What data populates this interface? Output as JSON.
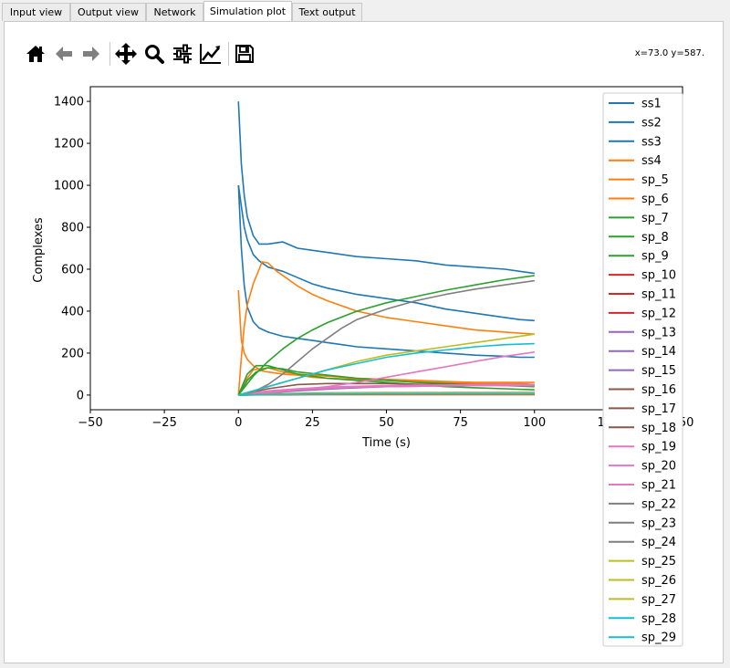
{
  "tabs": [
    {
      "label": "Input view",
      "active": false
    },
    {
      "label": "Output view",
      "active": false
    },
    {
      "label": "Network",
      "active": false
    },
    {
      "label": "Simulation plot",
      "active": true
    },
    {
      "label": "Text output",
      "active": false
    }
  ],
  "toolbar": {
    "buttons": [
      {
        "name": "home",
        "icon": "home-icon"
      },
      {
        "name": "back",
        "icon": "arrow-left-icon"
      },
      {
        "name": "forward",
        "icon": "arrow-right-icon"
      },
      {
        "name": "pan",
        "icon": "move-icon"
      },
      {
        "name": "zoom",
        "icon": "magnifier-icon"
      },
      {
        "name": "configure-subplots",
        "icon": "sliders-icon"
      },
      {
        "name": "edit-axis",
        "icon": "line-chart-icon"
      },
      {
        "name": "save",
        "icon": "floppy-disk-icon"
      }
    ],
    "coords_text": "x=73.0 y=587."
  },
  "chart_data": {
    "type": "line",
    "xlabel": "Time (s)",
    "ylabel": "Complexes",
    "xlim": [
      -50,
      150
    ],
    "ylim": [
      -70,
      1470
    ],
    "xticks": [
      -50,
      -25,
      0,
      25,
      50,
      75,
      100,
      125,
      150
    ],
    "xtick_labels": [
      "−50",
      "−25",
      "0",
      "25",
      "50",
      "75",
      "100",
      "125",
      "150"
    ],
    "yticks": [
      0,
      200,
      400,
      600,
      800,
      1000,
      1200,
      1400
    ],
    "legend_position": "right, extending below axes",
    "series": [
      {
        "name": "ss1",
        "color": "#1f77b4",
        "x": [
          0,
          1,
          2,
          3,
          5,
          7,
          10,
          15,
          20,
          25,
          30,
          40,
          50,
          60,
          70,
          80,
          90,
          95,
          100
        ],
        "y": [
          1400,
          1100,
          950,
          850,
          760,
          720,
          720,
          730,
          700,
          690,
          680,
          660,
          650,
          640,
          620,
          610,
          600,
          590,
          580
        ]
      },
      {
        "name": "ss2",
        "color": "#1f77b4",
        "x": [
          0,
          1,
          2,
          3,
          5,
          7,
          10,
          15,
          20,
          25,
          30,
          40,
          50,
          60,
          70,
          80,
          90,
          95,
          100
        ],
        "y": [
          1000,
          900,
          800,
          740,
          670,
          640,
          610,
          590,
          560,
          530,
          510,
          480,
          460,
          440,
          410,
          390,
          370,
          360,
          355
        ]
      },
      {
        "name": "ss3",
        "color": "#1f77b4",
        "x": [
          0,
          1,
          2,
          3,
          5,
          7,
          10,
          15,
          20,
          25,
          30,
          40,
          50,
          60,
          70,
          80,
          90,
          95,
          100
        ],
        "y": [
          1000,
          700,
          520,
          420,
          350,
          320,
          300,
          280,
          270,
          260,
          250,
          230,
          220,
          210,
          200,
          190,
          185,
          180,
          180
        ]
      },
      {
        "name": "ss4",
        "color": "#ff7f0e",
        "x": [
          0,
          1,
          2,
          3,
          5,
          8,
          10,
          15,
          20,
          25,
          30,
          40,
          50,
          60,
          70,
          80,
          90,
          95,
          100
        ],
        "y": [
          500,
          260,
          200,
          170,
          140,
          115,
          110,
          100,
          95,
          85,
          80,
          75,
          70,
          65,
          60,
          55,
          55,
          55,
          50
        ]
      },
      {
        "name": "sp_5",
        "color": "#ff7f0e",
        "x": [
          0,
          1,
          2,
          3,
          5,
          7,
          8,
          10,
          13,
          16,
          20,
          25,
          30,
          40,
          50,
          60,
          70,
          80,
          90,
          100
        ],
        "y": [
          0,
          180,
          330,
          430,
          530,
          600,
          635,
          630,
          590,
          560,
          520,
          480,
          450,
          400,
          370,
          350,
          330,
          310,
          300,
          290
        ]
      },
      {
        "name": "sp_6",
        "color": "#ff7f0e",
        "x": [
          0,
          2,
          5,
          10,
          15,
          20,
          25,
          30,
          40,
          50,
          60,
          70,
          80,
          90,
          100
        ],
        "y": [
          0,
          60,
          120,
          130,
          110,
          100,
          95,
          90,
          80,
          75,
          70,
          65,
          60,
          60,
          60
        ]
      },
      {
        "name": "sp_7",
        "color": "#2ca02c",
        "x": [
          0,
          5,
          10,
          15,
          20,
          25,
          30,
          40,
          50,
          60,
          70,
          80,
          90,
          100
        ],
        "y": [
          0,
          90,
          160,
          220,
          270,
          310,
          345,
          400,
          440,
          470,
          500,
          525,
          550,
          570
        ]
      },
      {
        "name": "sp_8",
        "color": "#2ca02c",
        "x": [
          0,
          3,
          6,
          10,
          15,
          20,
          25,
          30,
          40,
          50,
          60,
          70,
          80,
          90,
          100
        ],
        "y": [
          0,
          100,
          140,
          140,
          120,
          100,
          90,
          80,
          70,
          60,
          50,
          40,
          35,
          30,
          25
        ]
      },
      {
        "name": "sp_9",
        "color": "#2ca02c",
        "x": [
          0,
          3,
          6,
          10,
          15,
          20,
          30,
          40,
          50,
          60,
          70,
          80,
          90,
          100
        ],
        "y": [
          0,
          70,
          110,
          130,
          125,
          110,
          95,
          80,
          70,
          60,
          55,
          50,
          45,
          40
        ]
      },
      {
        "name": "sp_10",
        "color": "#d62728",
        "x": [
          0,
          10,
          25,
          50,
          75,
          100
        ],
        "y": [
          0,
          3,
          4,
          5,
          5,
          5
        ]
      },
      {
        "name": "sp_11",
        "color": "#d62728",
        "x": [
          0,
          10,
          25,
          50,
          75,
          100
        ],
        "y": [
          0,
          2,
          3,
          3,
          3,
          3
        ]
      },
      {
        "name": "sp_12",
        "color": "#d62728",
        "x": [
          0,
          10,
          25,
          50,
          75,
          100
        ],
        "y": [
          0,
          1,
          2,
          2,
          2,
          2
        ]
      },
      {
        "name": "sp_13",
        "color": "#9467bd",
        "x": [
          0,
          10,
          20,
          30,
          40,
          50,
          60,
          70,
          80,
          90,
          100
        ],
        "y": [
          0,
          15,
          25,
          35,
          40,
          42,
          45,
          48,
          50,
          50,
          50
        ]
      },
      {
        "name": "sp_14",
        "color": "#9467bd",
        "x": [
          0,
          10,
          20,
          30,
          40,
          50,
          60,
          70,
          80,
          90,
          100
        ],
        "y": [
          0,
          10,
          20,
          28,
          35,
          40,
          42,
          45,
          47,
          48,
          50
        ]
      },
      {
        "name": "sp_15",
        "color": "#9467bd",
        "x": [
          0,
          10,
          25,
          50,
          75,
          100
        ],
        "y": [
          0,
          5,
          8,
          10,
          12,
          12
        ]
      },
      {
        "name": "sp_16",
        "color": "#8c564b",
        "x": [
          0,
          10,
          20,
          30,
          40,
          50,
          60,
          70,
          80,
          90,
          100
        ],
        "y": [
          0,
          30,
          50,
          55,
          55,
          55,
          52,
          50,
          50,
          48,
          48
        ]
      },
      {
        "name": "sp_17",
        "color": "#8c564b",
        "x": [
          0,
          10,
          25,
          50,
          75,
          100
        ],
        "y": [
          0,
          5,
          8,
          10,
          10,
          10
        ]
      },
      {
        "name": "sp_18",
        "color": "#8c564b",
        "x": [
          0,
          10,
          25,
          50,
          75,
          100
        ],
        "y": [
          0,
          3,
          5,
          6,
          6,
          6
        ]
      },
      {
        "name": "sp_19",
        "color": "#e377c2",
        "x": [
          0,
          10,
          20,
          30,
          40,
          50,
          60,
          70,
          80,
          90,
          100
        ],
        "y": [
          0,
          10,
          25,
          40,
          60,
          85,
          110,
          135,
          160,
          185,
          205
        ]
      },
      {
        "name": "sp_20",
        "color": "#e377c2",
        "x": [
          0,
          10,
          20,
          30,
          40,
          50,
          60,
          70,
          80,
          90,
          100
        ],
        "y": [
          0,
          20,
          30,
          38,
          42,
          45,
          47,
          48,
          50,
          50,
          50
        ]
      },
      {
        "name": "sp_21",
        "color": "#e377c2",
        "x": [
          0,
          10,
          20,
          30,
          40,
          50,
          60,
          70,
          80,
          90,
          100
        ],
        "y": [
          0,
          15,
          25,
          32,
          38,
          40,
          42,
          44,
          45,
          45,
          45
        ]
      },
      {
        "name": "sp_22",
        "color": "#7f7f7f",
        "x": [
          0,
          5,
          10,
          15,
          20,
          25,
          30,
          35,
          40,
          50,
          60,
          70,
          80,
          90,
          100
        ],
        "y": [
          0,
          15,
          50,
          100,
          160,
          220,
          270,
          320,
          360,
          410,
          450,
          480,
          505,
          525,
          545
        ]
      },
      {
        "name": "sp_23",
        "color": "#7f7f7f",
        "x": [
          0,
          10,
          25,
          50,
          75,
          100
        ],
        "y": [
          0,
          5,
          10,
          12,
          12,
          12
        ]
      },
      {
        "name": "sp_24",
        "color": "#7f7f7f",
        "x": [
          0,
          10,
          25,
          50,
          75,
          100
        ],
        "y": [
          0,
          3,
          6,
          8,
          8,
          8
        ]
      },
      {
        "name": "sp_25",
        "color": "#bcbd22",
        "x": [
          0,
          10,
          20,
          30,
          40,
          50,
          60,
          70,
          80,
          90,
          100
        ],
        "y": [
          0,
          40,
          80,
          120,
          160,
          190,
          210,
          230,
          250,
          270,
          290
        ]
      },
      {
        "name": "sp_26",
        "color": "#bcbd22",
        "x": [
          0,
          10,
          25,
          50,
          75,
          100
        ],
        "y": [
          0,
          5,
          8,
          10,
          10,
          10
        ]
      },
      {
        "name": "sp_27",
        "color": "#bcbd22",
        "x": [
          0,
          10,
          25,
          50,
          75,
          100
        ],
        "y": [
          0,
          2,
          4,
          5,
          5,
          5
        ]
      },
      {
        "name": "sp_28",
        "color": "#17becf",
        "x": [
          0,
          10,
          20,
          30,
          40,
          50,
          60,
          70,
          80,
          90,
          100
        ],
        "y": [
          0,
          40,
          80,
          120,
          150,
          180,
          200,
          215,
          230,
          240,
          245
        ]
      },
      {
        "name": "sp_29",
        "color": "#17becf",
        "x": [
          0,
          10,
          25,
          50,
          75,
          100
        ],
        "y": [
          0,
          3,
          5,
          6,
          6,
          6
        ]
      }
    ]
  }
}
